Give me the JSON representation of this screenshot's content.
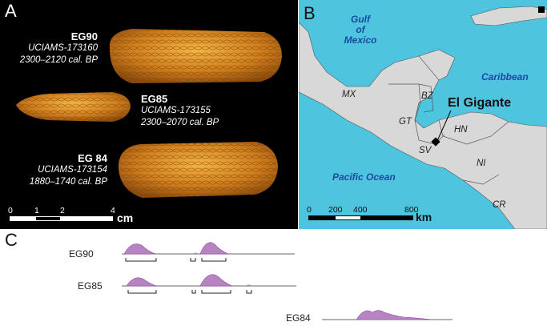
{
  "panel_a": {
    "label": "A",
    "specimens": [
      {
        "name": "EG90",
        "lab": "UCIAMS-173160",
        "date": "2300–2120 cal. BP"
      },
      {
        "name": "EG85",
        "lab": "UCIAMS-173155",
        "date": "2300–2070 cal. BP"
      },
      {
        "name": "EG 84",
        "lab": "UCIAMS-173154",
        "date": "1880–1740 cal. BP"
      }
    ],
    "scale": {
      "ticks": [
        "0",
        "1",
        "2",
        "4"
      ],
      "unit": "cm"
    }
  },
  "panel_b": {
    "label": "B",
    "oceans": [
      "Gulf of Mexico",
      "Caribbean",
      "Pacific Ocean"
    ],
    "countries": [
      "MX",
      "BZ",
      "GT",
      "HN",
      "SV",
      "NI",
      "CR"
    ],
    "site": "El Gigante",
    "scale": {
      "ticks": [
        "0",
        "200",
        "400",
        "800"
      ],
      "unit": "km"
    },
    "colors": {
      "ocean": "#4fc4df",
      "land": "#d8d8d8"
    }
  },
  "panel_c": {
    "label": "C",
    "rows": [
      "EG90",
      "EG85",
      "EG84"
    ],
    "colors": {
      "density": "#b784c2"
    }
  }
}
